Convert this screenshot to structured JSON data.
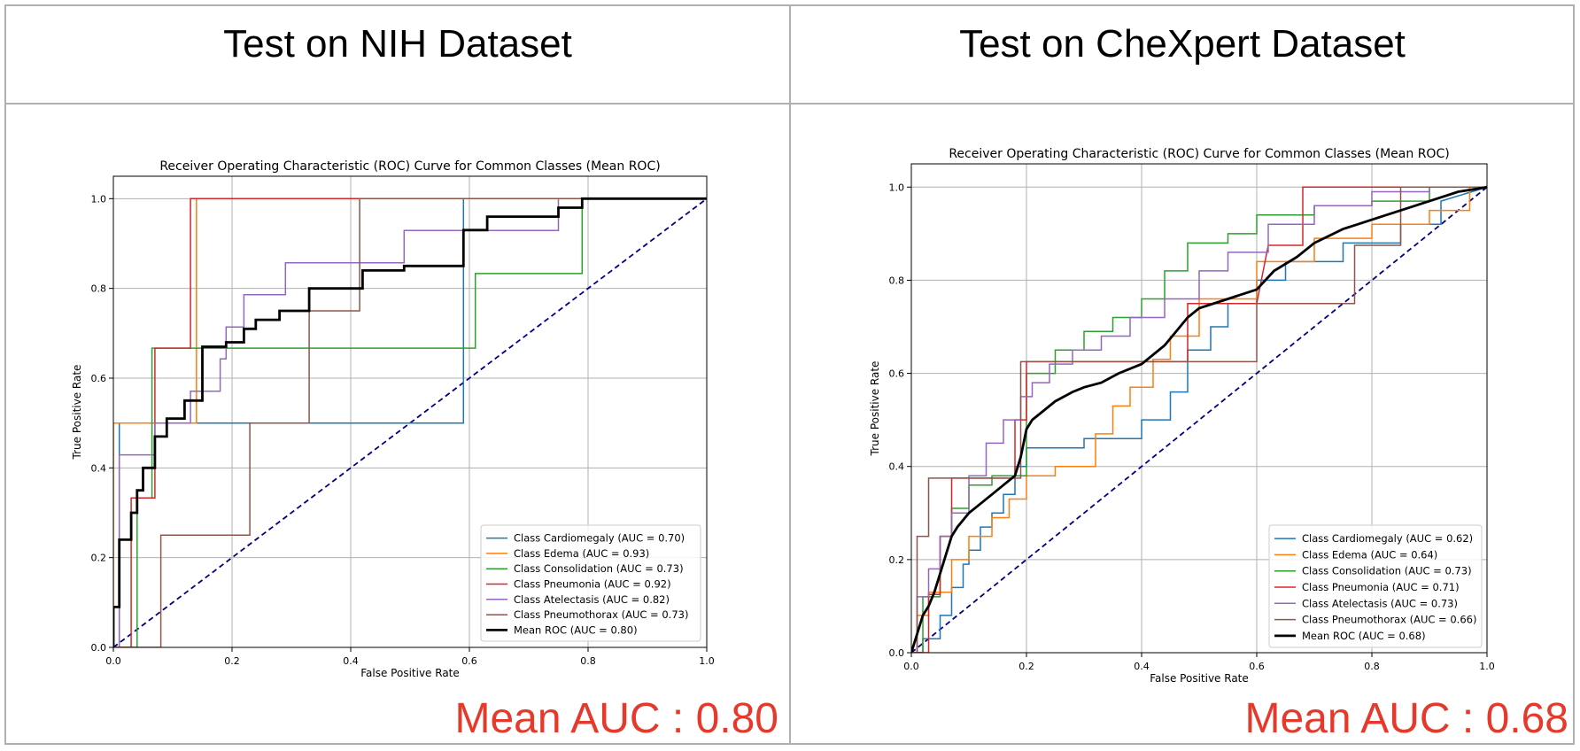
{
  "panels": [
    {
      "title": "Test on NIH Dataset",
      "mean_auc_label": "Mean AUC : 0.80"
    },
    {
      "title": "Test on CheXpert Dataset",
      "mean_auc_label": "Mean AUC : 0.68"
    }
  ],
  "colors": {
    "Cardiomegaly": "#1f77b4",
    "Edema": "#ff7f0e",
    "Consolidation": "#2ca02c",
    "Pneumonia": "#d62728",
    "Atelectasis": "#9467bd",
    "Pneumothorax": "#8c564b",
    "Mean": "#000000",
    "Diagonal": "#000080",
    "mean_auc_text": "#e53a2b"
  },
  "chart_data": [
    {
      "type": "line",
      "title": "Receiver Operating Characteristic (ROC) Curve for Common Classes (Mean ROC)",
      "xlabel": "False Positive Rate",
      "ylabel": "True Positive Rate",
      "xlim": [
        0,
        1.0
      ],
      "ylim": [
        0,
        1.05
      ],
      "xticks": [
        "0.0",
        "0.2",
        "0.4",
        "0.6",
        "0.8",
        "1.0"
      ],
      "yticks": [
        "0.0",
        "0.2",
        "0.4",
        "0.6",
        "0.8",
        "1.0"
      ],
      "grid": true,
      "legend_position": "lower right",
      "diagonal": {
        "x": [
          0,
          1
        ],
        "y": [
          0,
          1
        ],
        "style": "dashed",
        "color_key": "Diagonal"
      },
      "series": [
        {
          "name": "Class Cardiomegaly (AUC = 0.70)",
          "color_key": "Cardiomegaly",
          "x": [
            0,
            0.01,
            0.01,
            0.59,
            0.59,
            1.0
          ],
          "y": [
            0,
            0,
            0.5,
            0.5,
            1.0,
            1.0
          ]
        },
        {
          "name": "Class Edema (AUC = 0.93)",
          "color_key": "Edema",
          "x": [
            0,
            0,
            0.14,
            0.14,
            1.0
          ],
          "y": [
            0,
            0.5,
            0.5,
            1.0,
            1.0
          ]
        },
        {
          "name": "Class Consolidation (AUC = 0.73)",
          "color_key": "Consolidation",
          "x": [
            0,
            0.04,
            0.04,
            0.065,
            0.065,
            0.61,
            0.61,
            0.79,
            0.79,
            1.0
          ],
          "y": [
            0,
            0,
            0.333,
            0.333,
            0.667,
            0.667,
            0.833,
            0.833,
            1.0,
            1.0
          ]
        },
        {
          "name": "Class Pneumonia (AUC = 0.92)",
          "color_key": "Pneumonia",
          "x": [
            0,
            0.03,
            0.03,
            0.07,
            0.07,
            0.13,
            0.13,
            1.0
          ],
          "y": [
            0,
            0,
            0.333,
            0.333,
            0.667,
            0.667,
            1.0,
            1.0
          ]
        },
        {
          "name": "Class Atelectasis (AUC = 0.82)",
          "color_key": "Atelectasis",
          "x": [
            0,
            0.01,
            0.01,
            0.07,
            0.07,
            0.13,
            0.13,
            0.18,
            0.18,
            0.19,
            0.19,
            0.22,
            0.22,
            0.28,
            0.28,
            0.29,
            0.29,
            0.42,
            0.42,
            0.49,
            0.49,
            0.75,
            0.75,
            1.0
          ],
          "y": [
            0,
            0,
            0.429,
            0.429,
            0.5,
            0.5,
            0.571,
            0.571,
            0.643,
            0.643,
            0.714,
            0.714,
            0.786,
            0.786,
            0.786,
            0.786,
            0.857,
            0.857,
            0.857,
            0.857,
            0.929,
            0.929,
            1.0,
            1.0
          ]
        },
        {
          "name": "Class Pneumothorax (AUC = 0.73)",
          "color_key": "Pneumothorax",
          "x": [
            0,
            0.08,
            0.08,
            0.23,
            0.23,
            0.33,
            0.33,
            0.415,
            0.415,
            1.0
          ],
          "y": [
            0,
            0,
            0.25,
            0.25,
            0.5,
            0.5,
            0.75,
            0.75,
            1.0,
            1.0
          ]
        },
        {
          "name": "Mean ROC (AUC = 0.80)",
          "color_key": "Mean",
          "bold": true,
          "x": [
            0,
            0.0,
            0.01,
            0.01,
            0.03,
            0.03,
            0.04,
            0.04,
            0.05,
            0.05,
            0.07,
            0.07,
            0.09,
            0.09,
            0.12,
            0.12,
            0.15,
            0.15,
            0.19,
            0.19,
            0.22,
            0.22,
            0.24,
            0.24,
            0.28,
            0.28,
            0.31,
            0.31,
            0.33,
            0.33,
            0.42,
            0.42,
            0.49,
            0.49,
            0.59,
            0.59,
            0.63,
            0.63,
            0.75,
            0.75,
            0.79,
            0.79,
            1.0
          ],
          "y": [
            0.0,
            0.09,
            0.09,
            0.24,
            0.24,
            0.3,
            0.3,
            0.35,
            0.35,
            0.4,
            0.4,
            0.47,
            0.47,
            0.51,
            0.51,
            0.55,
            0.55,
            0.67,
            0.67,
            0.68,
            0.68,
            0.71,
            0.71,
            0.73,
            0.73,
            0.75,
            0.75,
            0.75,
            0.75,
            0.8,
            0.8,
            0.84,
            0.84,
            0.85,
            0.85,
            0.93,
            0.93,
            0.96,
            0.96,
            0.98,
            0.98,
            1.0,
            1.0
          ]
        }
      ]
    },
    {
      "type": "line",
      "title": "Receiver Operating Characteristic (ROC) Curve for Common Classes (Mean ROC)",
      "xlabel": "False Positive Rate",
      "ylabel": "True Positive Rate",
      "xlim": [
        0,
        1.0
      ],
      "ylim": [
        0,
        1.05
      ],
      "xticks": [
        "0.0",
        "0.2",
        "0.4",
        "0.6",
        "0.8",
        "1.0"
      ],
      "yticks": [
        "0.0",
        "0.2",
        "0.4",
        "0.6",
        "0.8",
        "1.0"
      ],
      "grid": true,
      "legend_position": "lower right",
      "diagonal": {
        "x": [
          0,
          1
        ],
        "y": [
          0,
          1
        ],
        "style": "dashed",
        "color_key": "Diagonal"
      },
      "series": [
        {
          "name": "Class Cardiomegaly (AUC = 0.62)",
          "color_key": "Cardiomegaly",
          "x": [
            0,
            0.02,
            0.02,
            0.05,
            0.05,
            0.07,
            0.07,
            0.09,
            0.09,
            0.1,
            0.1,
            0.12,
            0.12,
            0.14,
            0.14,
            0.16,
            0.16,
            0.18,
            0.18,
            0.2,
            0.2,
            0.23,
            0.23,
            0.3,
            0.3,
            0.4,
            0.4,
            0.45,
            0.45,
            0.48,
            0.48,
            0.52,
            0.52,
            0.55,
            0.55,
            0.6,
            0.6,
            0.65,
            0.65,
            0.75,
            0.75,
            0.85,
            0.85,
            0.92,
            0.92,
            1.0
          ],
          "y": [
            0,
            0,
            0.03,
            0.03,
            0.08,
            0.08,
            0.14,
            0.14,
            0.19,
            0.19,
            0.22,
            0.22,
            0.27,
            0.27,
            0.3,
            0.3,
            0.34,
            0.34,
            0.4,
            0.4,
            0.44,
            0.44,
            0.44,
            0.44,
            0.46,
            0.46,
            0.5,
            0.5,
            0.56,
            0.56,
            0.65,
            0.65,
            0.7,
            0.7,
            0.75,
            0.75,
            0.8,
            0.8,
            0.84,
            0.84,
            0.88,
            0.88,
            0.92,
            0.92,
            0.97,
            1.0
          ]
        },
        {
          "name": "Class Edema (AUC = 0.64)",
          "color_key": "Edema",
          "x": [
            0,
            0.01,
            0.01,
            0.03,
            0.03,
            0.07,
            0.07,
            0.1,
            0.1,
            0.14,
            0.14,
            0.17,
            0.17,
            0.2,
            0.2,
            0.25,
            0.25,
            0.32,
            0.32,
            0.35,
            0.35,
            0.38,
            0.38,
            0.42,
            0.42,
            0.45,
            0.45,
            0.5,
            0.5,
            0.6,
            0.6,
            0.7,
            0.7,
            0.8,
            0.8,
            0.9,
            0.9,
            0.97,
            0.97,
            1.0
          ],
          "y": [
            0,
            0,
            0.08,
            0.08,
            0.13,
            0.13,
            0.2,
            0.2,
            0.25,
            0.25,
            0.29,
            0.29,
            0.33,
            0.33,
            0.38,
            0.38,
            0.4,
            0.4,
            0.47,
            0.47,
            0.53,
            0.53,
            0.57,
            0.57,
            0.63,
            0.63,
            0.68,
            0.68,
            0.76,
            0.76,
            0.84,
            0.84,
            0.89,
            0.89,
            0.92,
            0.92,
            0.95,
            0.95,
            1.0,
            1.0
          ]
        },
        {
          "name": "Class Consolidation (AUC = 0.73)",
          "color_key": "Consolidation",
          "x": [
            0,
            0.02,
            0.02,
            0.05,
            0.05,
            0.07,
            0.07,
            0.1,
            0.1,
            0.14,
            0.14,
            0.2,
            0.2,
            0.25,
            0.25,
            0.3,
            0.3,
            0.35,
            0.35,
            0.4,
            0.4,
            0.44,
            0.44,
            0.48,
            0.48,
            0.55,
            0.55,
            0.6,
            0.6,
            0.7,
            0.7,
            0.8,
            0.8,
            0.9,
            0.9,
            1.0
          ],
          "y": [
            0,
            0,
            0.12,
            0.12,
            0.25,
            0.25,
            0.31,
            0.31,
            0.36,
            0.36,
            0.38,
            0.38,
            0.6,
            0.6,
            0.65,
            0.65,
            0.69,
            0.69,
            0.72,
            0.72,
            0.76,
            0.76,
            0.82,
            0.82,
            0.88,
            0.88,
            0.9,
            0.9,
            0.94,
            0.94,
            0.96,
            0.96,
            0.97,
            0.97,
            1.0,
            1.0
          ]
        },
        {
          "name": "Class Pneumonia (AUC = 0.71)",
          "color_key": "Pneumonia",
          "x": [
            0,
            0.03,
            0.03,
            0.05,
            0.05,
            0.07,
            0.07,
            0.18,
            0.18,
            0.2,
            0.2,
            0.48,
            0.48,
            0.6,
            0.6,
            0.62,
            0.62,
            0.68,
            0.68,
            1.0
          ],
          "y": [
            0,
            0,
            0.125,
            0.125,
            0.25,
            0.25,
            0.375,
            0.375,
            0.5,
            0.5,
            0.625,
            0.625,
            0.75,
            0.75,
            0.75,
            0.875,
            0.875,
            0.875,
            1.0,
            1.0
          ]
        },
        {
          "name": "Class Atelectasis (AUC = 0.73)",
          "color_key": "Atelectasis",
          "x": [
            0,
            0.01,
            0.01,
            0.03,
            0.03,
            0.05,
            0.05,
            0.07,
            0.07,
            0.1,
            0.1,
            0.13,
            0.13,
            0.16,
            0.16,
            0.19,
            0.19,
            0.21,
            0.21,
            0.24,
            0.24,
            0.28,
            0.28,
            0.33,
            0.33,
            0.38,
            0.38,
            0.44,
            0.44,
            0.5,
            0.5,
            0.55,
            0.55,
            0.62,
            0.62,
            0.7,
            0.7,
            0.8,
            0.8,
            0.9,
            0.9,
            1.0
          ],
          "y": [
            0,
            0,
            0.12,
            0.12,
            0.18,
            0.18,
            0.25,
            0.25,
            0.3,
            0.3,
            0.38,
            0.38,
            0.45,
            0.45,
            0.5,
            0.5,
            0.55,
            0.55,
            0.58,
            0.58,
            0.62,
            0.62,
            0.65,
            0.65,
            0.68,
            0.68,
            0.72,
            0.72,
            0.76,
            0.76,
            0.82,
            0.82,
            0.86,
            0.86,
            0.92,
            0.92,
            0.96,
            0.96,
            0.99,
            0.99,
            1.0,
            1.0
          ]
        },
        {
          "name": "Class Pneumothorax (AUC = 0.66)",
          "color_key": "Pneumothorax",
          "x": [
            0,
            0.01,
            0.01,
            0.03,
            0.03,
            0.19,
            0.19,
            0.6,
            0.6,
            0.77,
            0.77,
            0.85,
            0.85,
            0.97,
            0.97,
            1.0
          ],
          "y": [
            0,
            0,
            0.25,
            0.25,
            0.375,
            0.375,
            0.625,
            0.625,
            0.75,
            0.75,
            0.875,
            0.875,
            1.0,
            1.0,
            1.0,
            1.0
          ]
        },
        {
          "name": "Mean ROC (AUC = 0.68)",
          "color_key": "Mean",
          "bold": true,
          "x": [
            0,
            0.01,
            0.02,
            0.03,
            0.04,
            0.05,
            0.06,
            0.07,
            0.08,
            0.1,
            0.12,
            0.14,
            0.16,
            0.18,
            0.19,
            0.2,
            0.21,
            0.23,
            0.25,
            0.28,
            0.3,
            0.33,
            0.36,
            0.4,
            0.44,
            0.48,
            0.5,
            0.55,
            0.6,
            0.63,
            0.67,
            0.7,
            0.75,
            0.8,
            0.85,
            0.9,
            0.95,
            1.0
          ],
          "y": [
            0,
            0.04,
            0.08,
            0.1,
            0.13,
            0.17,
            0.21,
            0.25,
            0.27,
            0.3,
            0.32,
            0.34,
            0.36,
            0.38,
            0.42,
            0.48,
            0.5,
            0.52,
            0.54,
            0.56,
            0.57,
            0.58,
            0.6,
            0.62,
            0.66,
            0.72,
            0.74,
            0.76,
            0.78,
            0.82,
            0.85,
            0.88,
            0.91,
            0.93,
            0.95,
            0.97,
            0.99,
            1.0
          ]
        }
      ]
    }
  ]
}
